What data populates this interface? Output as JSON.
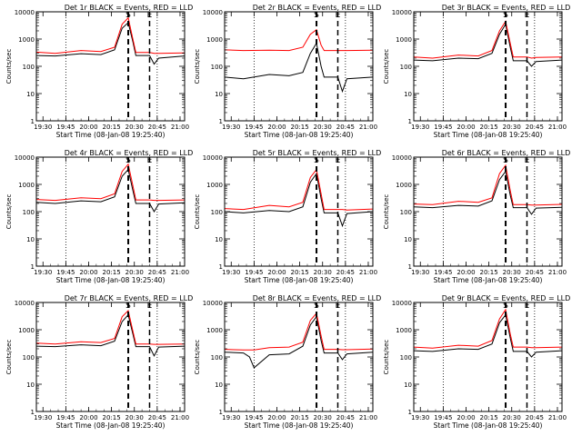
{
  "common": {
    "ylabel": "Counts/sec",
    "xlabel": "Start Time (08-Jan-08 19:25:40)",
    "x_ticks": [
      "19:30",
      "19:45",
      "20:00",
      "20:15",
      "20:30",
      "20:45",
      "21:00"
    ],
    "y_ticks": [
      "1",
      "10",
      "100",
      "1000",
      "10000"
    ],
    "marker_S": "S",
    "marker_E": "E",
    "colors": {
      "events": "#000000",
      "lld": "#ff0000"
    }
  },
  "chart_data": [
    {
      "type": "line",
      "title": "Det 1r BLACK = Events, RED = LLD",
      "ylim": [
        1,
        10000
      ],
      "yscale": "log",
      "x": [
        "19:25:40",
        "19:38",
        "19:55",
        "20:08",
        "20:17",
        "20:22",
        "20:26",
        "20:29",
        "20:31",
        "20:40",
        "20:43",
        "20:46",
        "21:03"
      ],
      "series": [
        {
          "name": "BLACK = Events",
          "values": [
            250,
            240,
            290,
            270,
            400,
            2500,
            4000,
            800,
            250,
            250,
            120,
            200,
            240
          ]
        },
        {
          "name": "RED = LLD",
          "values": [
            330,
            300,
            380,
            350,
            500,
            3500,
            6000,
            1000,
            320,
            320,
            300,
            300,
            310
          ]
        }
      ]
    },
    {
      "type": "line",
      "title": "Det 2r BLACK = Events, RED = LLD",
      "ylim": [
        1,
        10000
      ],
      "yscale": "log",
      "x": [
        "19:25:40",
        "19:38",
        "19:55",
        "20:08",
        "20:17",
        "20:22",
        "20:26",
        "20:29",
        "20:31",
        "20:40",
        "20:43",
        "20:46",
        "21:03"
      ],
      "series": [
        {
          "name": "BLACK = Events",
          "values": [
            40,
            35,
            50,
            45,
            60,
            300,
            700,
            100,
            40,
            40,
            12,
            35,
            40
          ]
        },
        {
          "name": "RED = LLD",
          "values": [
            400,
            380,
            390,
            380,
            500,
            1500,
            2200,
            600,
            380,
            380,
            380,
            380,
            390
          ]
        }
      ]
    },
    {
      "type": "line",
      "title": "Det 3r BLACK = Events, RED = LLD",
      "ylim": [
        1,
        10000
      ],
      "yscale": "log",
      "x": [
        "19:25:40",
        "19:38",
        "19:55",
        "20:08",
        "20:17",
        "20:22",
        "20:26",
        "20:29",
        "20:31",
        "20:40",
        "20:43",
        "20:46",
        "21:03"
      ],
      "series": [
        {
          "name": "BLACK = Events",
          "values": [
            170,
            160,
            200,
            190,
            300,
            1500,
            3500,
            500,
            160,
            160,
            100,
            150,
            170
          ]
        },
        {
          "name": "RED = LLD",
          "values": [
            220,
            200,
            260,
            240,
            380,
            2000,
            4500,
            700,
            220,
            220,
            200,
            210,
            220
          ]
        }
      ]
    },
    {
      "type": "line",
      "title": "Det 4r BLACK = Events, RED = LLD",
      "ylim": [
        1,
        10000
      ],
      "yscale": "log",
      "x": [
        "19:25:40",
        "19:38",
        "19:55",
        "20:08",
        "20:17",
        "20:22",
        "20:26",
        "20:29",
        "20:31",
        "20:40",
        "20:43",
        "20:46",
        "21:03"
      ],
      "series": [
        {
          "name": "BLACK = Events",
          "values": [
            220,
            200,
            250,
            230,
            350,
            2000,
            3500,
            600,
            200,
            200,
            100,
            190,
            210
          ]
        },
        {
          "name": "RED = LLD",
          "values": [
            280,
            260,
            320,
            300,
            450,
            3000,
            5500,
            900,
            270,
            270,
            260,
            260,
            270
          ]
        }
      ]
    },
    {
      "type": "line",
      "title": "Det 5r BLACK = Events, RED = LLD",
      "ylim": [
        1,
        10000
      ],
      "yscale": "log",
      "x": [
        "19:25:40",
        "19:38",
        "19:55",
        "20:08",
        "20:17",
        "20:22",
        "20:26",
        "20:29",
        "20:31",
        "20:40",
        "20:43",
        "20:46",
        "21:03"
      ],
      "series": [
        {
          "name": "BLACK = Events",
          "values": [
            100,
            90,
            110,
            100,
            150,
            1200,
            2500,
            300,
            90,
            90,
            30,
            85,
            100
          ]
        },
        {
          "name": "RED = LLD",
          "values": [
            130,
            120,
            170,
            150,
            220,
            1800,
            3500,
            450,
            120,
            120,
            120,
            115,
            125
          ]
        }
      ]
    },
    {
      "type": "line",
      "title": "Det 6r BLACK = Events, RED = LLD",
      "ylim": [
        1,
        10000
      ],
      "yscale": "log",
      "x": [
        "19:25:40",
        "19:38",
        "19:55",
        "20:08",
        "20:17",
        "20:22",
        "20:26",
        "20:29",
        "20:31",
        "20:40",
        "20:43",
        "20:46",
        "21:03"
      ],
      "series": [
        {
          "name": "BLACK = Events",
          "values": [
            150,
            140,
            170,
            160,
            250,
            1500,
            3000,
            400,
            140,
            140,
            80,
            135,
            145
          ]
        },
        {
          "name": "RED = LLD",
          "values": [
            190,
            180,
            240,
            220,
            320,
            2500,
            5000,
            600,
            180,
            180,
            175,
            175,
            185
          ]
        }
      ]
    },
    {
      "type": "line",
      "title": "Det 7r BLACK = Events, RED = LLD",
      "ylim": [
        1,
        10000
      ],
      "yscale": "log",
      "x": [
        "19:25:40",
        "19:38",
        "19:55",
        "20:08",
        "20:17",
        "20:22",
        "20:26",
        "20:29",
        "20:31",
        "20:40",
        "20:43",
        "20:46",
        "21:03"
      ],
      "series": [
        {
          "name": "BLACK = Events",
          "values": [
            250,
            240,
            280,
            260,
            380,
            2000,
            3500,
            700,
            240,
            240,
            110,
            230,
            250
          ]
        },
        {
          "name": "RED = LLD",
          "values": [
            320,
            300,
            360,
            340,
            480,
            3000,
            5000,
            900,
            300,
            300,
            290,
            290,
            300
          ]
        }
      ]
    },
    {
      "type": "line",
      "title": "Det 8r BLACK = Events, RED = LLD",
      "ylim": [
        1,
        10000
      ],
      "yscale": "log",
      "x": [
        "19:25:40",
        "19:38",
        "19:42",
        "19:45",
        "19:55",
        "20:08",
        "20:17",
        "20:22",
        "20:26",
        "20:29",
        "20:31",
        "20:40",
        "20:43",
        "20:46",
        "21:03"
      ],
      "series": [
        {
          "name": "BLACK = Events",
          "values": [
            150,
            140,
            100,
            40,
            120,
            130,
            250,
            1500,
            3000,
            400,
            140,
            140,
            80,
            130,
            150
          ]
        },
        {
          "name": "RED = LLD",
          "values": [
            190,
            180,
            180,
            180,
            220,
            230,
            350,
            2200,
            4000,
            600,
            190,
            190,
            185,
            185,
            195
          ]
        }
      ]
    },
    {
      "type": "line",
      "title": "Det 9r BLACK = Events, RED = LLD",
      "ylim": [
        1,
        10000
      ],
      "yscale": "log",
      "x": [
        "19:25:40",
        "19:38",
        "19:55",
        "20:08",
        "20:17",
        "20:22",
        "20:26",
        "20:29",
        "20:31",
        "20:40",
        "20:43",
        "20:46",
        "21:03"
      ],
      "series": [
        {
          "name": "BLACK = Events",
          "values": [
            170,
            160,
            200,
            190,
            300,
            1800,
            3500,
            500,
            160,
            160,
            100,
            150,
            170
          ]
        },
        {
          "name": "RED = LLD",
          "values": [
            230,
            210,
            270,
            250,
            400,
            2500,
            5500,
            700,
            230,
            230,
            220,
            220,
            230
          ]
        }
      ]
    }
  ]
}
